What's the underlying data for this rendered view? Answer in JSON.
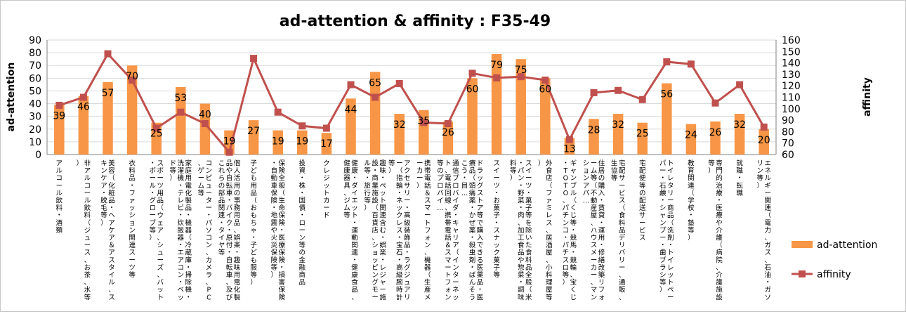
{
  "chart_data": {
    "type": "bar+line",
    "title": "ad-attention & affinity : F35-49",
    "ylabel_left": "ad-attention",
    "ylabel_right": "affinity",
    "ylim_left": [
      0,
      90
    ],
    "ylim_right": [
      60,
      160
    ],
    "yticks_left": [
      "0",
      "10",
      "20",
      "30",
      "40",
      "50",
      "60",
      "70",
      "80",
      "90"
    ],
    "yticks_right": [
      "60",
      "70",
      "80",
      "90",
      "100",
      "110",
      "120",
      "130",
      "140",
      "150",
      "160"
    ],
    "legend_position": "right",
    "colors": {
      "bar": "#F79646",
      "line": "#C0504D",
      "grid": "#d9d9d9",
      "axis": "#808080"
    },
    "categories": [
      "アルコール飲料・酒類",
      "非アルコール飲料（ジュース、お茶、水等）",
      "美容（化粧品・ヘアケア＆アスタイル、スキンケア・脱毛等）",
      "衣料品・ファッション関連スーツ等",
      "スポーツ用品（ウェア、シューズ、バット・ボール・グローブ等）",
      "家庭用電化製品・機器（冷蔵庫・掃除機・洗濯機・テレビ・炊飯器・エアコン・ベッド等）",
      "コンピューター・パソコン、カメラ、PC、ゲーム等",
      "個人活用の事務用品、娯楽・趣味用電化製品や自転車・バイク・原付・自転車、及びこれらの部品関連・タイヤ等",
      "子ども用品（おもちゃ・子ども服等）",
      "保険全般（生命保険・医療保険・損害保険・自動車保険・地震や火災保険等）",
      "投資・株・国債・ローン等の金融商品",
      "クレジットカード",
      "健康・ダイエット・運動関連・健康食品、健康器具、ジム等",
      "趣味・ペット関連含む・娯楽・レジャー施設・商業施設（百貨店、ショッピングモール等・旅行等）",
      "アクセサリー・高級装飾品・ラグジュアリー（指輪・ネックレス・宝石・高級腕時計等）",
      "携帯電話＆スマートフォン、機器（生産メーカー）",
      "通信プロバイダ・キャリア（インターネット、電話回線、携帯電話＆スマートフォン等のプロバイ…",
      "ドラッグストア等で購入できる医薬品・医療品（頭痛薬・かぜ薬・殺虫剤・ばんそうこう・目…",
      "スイーツ・お菓子・スナック菓子等",
      "スイーツ・菓子等を除いた食料品全般（米・パン・野菜・肉、加工食品や惣菜・調味料等）",
      "外食店（ファミレス、居酒屋、小料理屋等）",
      "ギャンブル（くじ等・競馬・競輪、宝くじ・TOTO、パチンコ・パチスロ等）",
      "住居の購入・賃貸・運用・修繕改築リフォーム等（不動産屋、ハウスメーカー、マンションアパ…",
      "宅配サービス（食料品デリバリー、通販、生協等",
      "宅配便等の配送サービス",
      "トイレタリー商品（洗剤・トイレットペーパー・石鹸・シャンプー・歯ブラシ等）",
      "教育関連（学校・塾等）",
      "専門的治療・医療や介護（病院、介護施設等）",
      "就職・転職",
      "エネルギー関連（電力、ガス、石油・ガソリン等）"
    ],
    "series": [
      {
        "name": "ad-attention",
        "type": "bar",
        "axis": "left",
        "values": [
          39,
          46,
          57,
          70,
          25,
          53,
          40,
          19,
          27,
          19,
          19,
          17,
          44,
          65,
          32,
          35,
          26,
          60,
          79,
          75,
          60,
          13,
          28,
          32,
          25,
          56,
          24,
          26,
          32,
          20
        ]
      },
      {
        "name": "affinity",
        "type": "line",
        "axis": "right",
        "values": [
          103,
          110,
          148,
          125,
          83,
          97,
          87,
          62,
          144,
          97,
          85,
          83,
          121,
          110,
          122,
          88,
          87,
          131,
          127,
          128,
          125,
          73,
          114,
          116,
          108,
          141,
          139,
          105,
          121,
          84
        ]
      }
    ],
    "data_labels": [
      "39",
      "46",
      "57",
      "70",
      "25",
      "53",
      "40",
      "19",
      "27",
      "19",
      "19",
      "17",
      "44",
      "65",
      "32",
      "35",
      "26",
      "60",
      "79",
      "75",
      "60",
      "13",
      "28",
      "32",
      "25",
      "56",
      "24",
      "26",
      "32",
      "20"
    ]
  }
}
